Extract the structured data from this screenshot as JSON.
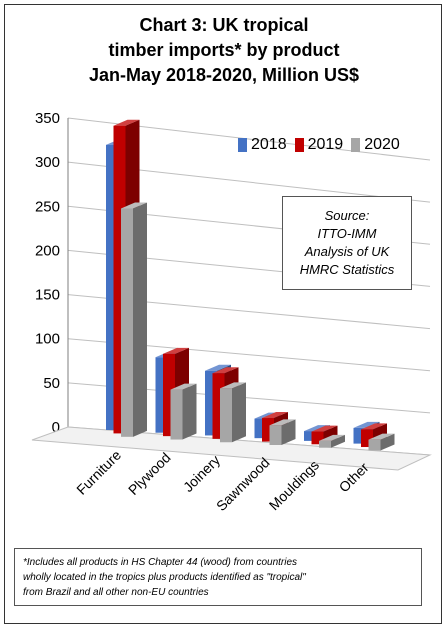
{
  "chart_data": {
    "type": "bar",
    "title_lines": [
      "Chart 3: UK tropical",
      "timber imports* by product",
      "Jan-May 2018-2020, Million US$"
    ],
    "categories": [
      "Furniture",
      "Plywood",
      "Joinery",
      "Sawnwood",
      "Mouldings",
      "Other"
    ],
    "series": [
      {
        "name": "2018",
        "color": "#4472c4",
        "values": [
          291,
          77,
          66,
          20,
          10,
          16
        ]
      },
      {
        "name": "2019",
        "color": "#c00000",
        "values": [
          314,
          84,
          67,
          24,
          13,
          18
        ]
      },
      {
        "name": "2020",
        "color": "#a6a6a6",
        "values": [
          233,
          51,
          55,
          20,
          7,
          11
        ]
      }
    ],
    "ylim": [
      0,
      350
    ],
    "yticks": [
      0,
      50,
      100,
      150,
      200,
      250,
      300,
      350
    ],
    "grid": true,
    "legend_position": "top-right",
    "source_lines": [
      "Source:",
      "ITTO-IMM",
      "Analysis of UK",
      "HMRC Statistics"
    ],
    "footnote_lines": [
      "*Includes all products in HS Chapter 44 (wood) from countries",
      "wholly located in the tropics plus products identified as \"tropical\"",
      "from Brazil and all other non-EU countries"
    ]
  }
}
